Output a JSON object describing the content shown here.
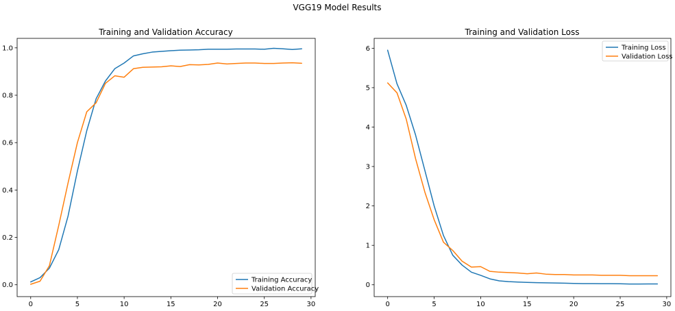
{
  "figure": {
    "suptitle": "VGG19 Model Results"
  },
  "chart_data": [
    {
      "type": "line",
      "title": "Training and Validation Accuracy",
      "xlabel": "",
      "ylabel": "",
      "xlim": [
        -1.45,
        30.45
      ],
      "ylim": [
        -0.05,
        1.04
      ],
      "xticks": [
        0,
        5,
        10,
        15,
        20,
        25,
        30
      ],
      "yticks": [
        0.0,
        0.2,
        0.4,
        0.6,
        0.8,
        1.0
      ],
      "ytick_labels": [
        "0.0",
        "0.2",
        "0.4",
        "0.6",
        "0.8",
        "1.0"
      ],
      "legend": "lower-right",
      "grid": false,
      "x": [
        0,
        1,
        2,
        3,
        4,
        5,
        6,
        7,
        8,
        9,
        10,
        11,
        12,
        13,
        14,
        15,
        16,
        17,
        18,
        19,
        20,
        21,
        22,
        23,
        24,
        25,
        26,
        27,
        28,
        29
      ],
      "series": [
        {
          "name": "Training Accuracy",
          "color": "#1f77b4",
          "values": [
            0.012,
            0.03,
            0.07,
            0.148,
            0.29,
            0.48,
            0.65,
            0.785,
            0.86,
            0.912,
            0.936,
            0.966,
            0.975,
            0.982,
            0.985,
            0.988,
            0.99,
            0.991,
            0.992,
            0.994,
            0.994,
            0.994,
            0.995,
            0.995,
            0.995,
            0.994,
            0.998,
            0.996,
            0.993,
            0.996
          ]
        },
        {
          "name": "Validation Accuracy",
          "color": "#ff7f0e",
          "values": [
            0.002,
            0.015,
            0.08,
            0.25,
            0.43,
            0.6,
            0.73,
            0.768,
            0.85,
            0.882,
            0.876,
            0.912,
            0.918,
            0.919,
            0.92,
            0.924,
            0.921,
            0.929,
            0.928,
            0.93,
            0.936,
            0.932,
            0.934,
            0.936,
            0.936,
            0.934,
            0.934,
            0.936,
            0.937,
            0.935
          ]
        }
      ]
    },
    {
      "type": "line",
      "title": "Training and Validation Loss",
      "xlabel": "",
      "ylabel": "",
      "xlim": [
        -1.45,
        30.45
      ],
      "ylim": [
        -0.3,
        6.25
      ],
      "xticks": [
        0,
        5,
        10,
        15,
        20,
        25,
        30
      ],
      "yticks": [
        0,
        1,
        2,
        3,
        4,
        5,
        6
      ],
      "ytick_labels": [
        "0",
        "1",
        "2",
        "3",
        "4",
        "5",
        "6"
      ],
      "legend": "top-right",
      "grid": false,
      "x": [
        0,
        1,
        2,
        3,
        4,
        5,
        6,
        7,
        8,
        9,
        10,
        11,
        12,
        13,
        14,
        15,
        16,
        17,
        18,
        19,
        20,
        21,
        22,
        23,
        24,
        25,
        26,
        27,
        28,
        29
      ],
      "series": [
        {
          "name": "Training Loss",
          "color": "#1f77b4",
          "values": [
            5.95,
            5.1,
            4.55,
            3.8,
            2.9,
            2.0,
            1.25,
            0.75,
            0.5,
            0.32,
            0.24,
            0.15,
            0.1,
            0.08,
            0.07,
            0.06,
            0.055,
            0.05,
            0.045,
            0.04,
            0.035,
            0.03,
            0.03,
            0.028,
            0.028,
            0.025,
            0.02,
            0.02,
            0.022,
            0.022
          ]
        },
        {
          "name": "Validation Loss",
          "color": "#ff7f0e",
          "values": [
            5.12,
            4.87,
            4.2,
            3.2,
            2.35,
            1.65,
            1.08,
            0.87,
            0.6,
            0.45,
            0.46,
            0.34,
            0.32,
            0.31,
            0.3,
            0.28,
            0.3,
            0.27,
            0.26,
            0.26,
            0.25,
            0.25,
            0.25,
            0.24,
            0.24,
            0.24,
            0.23,
            0.23,
            0.23,
            0.23
          ]
        }
      ]
    }
  ]
}
